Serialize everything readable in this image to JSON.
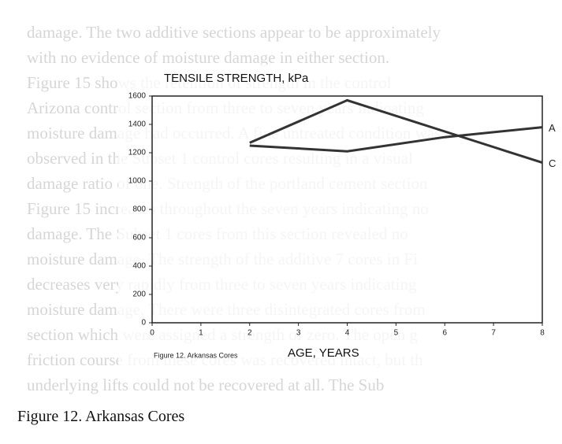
{
  "chart_data": {
    "type": "line",
    "title": "TENSILE STRENGTH, kPa",
    "x_label": "AGE, YEARS",
    "inner_caption": "Figure 12. Arkansas Cores",
    "caption": "Figure 12. Arkansas Cores",
    "x": [
      2,
      4,
      6,
      8
    ],
    "series": [
      {
        "name": "A",
        "color": "#333333",
        "values": [
          1250,
          1210,
          1310,
          1380
        ]
      },
      {
        "name": "C",
        "color": "#333333",
        "values": [
          1270,
          1570,
          1350,
          1130
        ]
      }
    ],
    "xlim": [
      0,
      8
    ],
    "xticks": [
      0,
      1,
      2,
      3,
      4,
      5,
      6,
      7,
      8
    ],
    "ylim": [
      0,
      1600
    ],
    "yticks": [
      0,
      200,
      400,
      600,
      800,
      1000,
      1200,
      1400,
      1600
    ],
    "background_text": [
      "damage. The two additive sections appear to be approximately",
      "with no evidence of moisture damage in either section.",
      "Figure 15 shows the retention of strength in the control",
      "Arizona control section from three to seven years indicating",
      "moisture damage had occurred. A fine untreated condition was",
      "observed in the Subset 1 control cores resulting in a visual",
      "damage ratio of one. Strength of the portland cement section",
      "Figure 15 increases throughout the seven years indicating no",
      "damage. The Subset 1 cores from this section revealed no",
      "moisture damage. The strength of the additive 7 cores in Fi",
      "decreases very rapidly from three to seven years indicating",
      "moisture damage. There were three disintegrated cores from",
      "section which were assigned a strength of zero. The open g",
      "friction course from these cores was recovered intact, but th",
      "underlying lifts could not be recovered at all. The Sub"
    ]
  }
}
